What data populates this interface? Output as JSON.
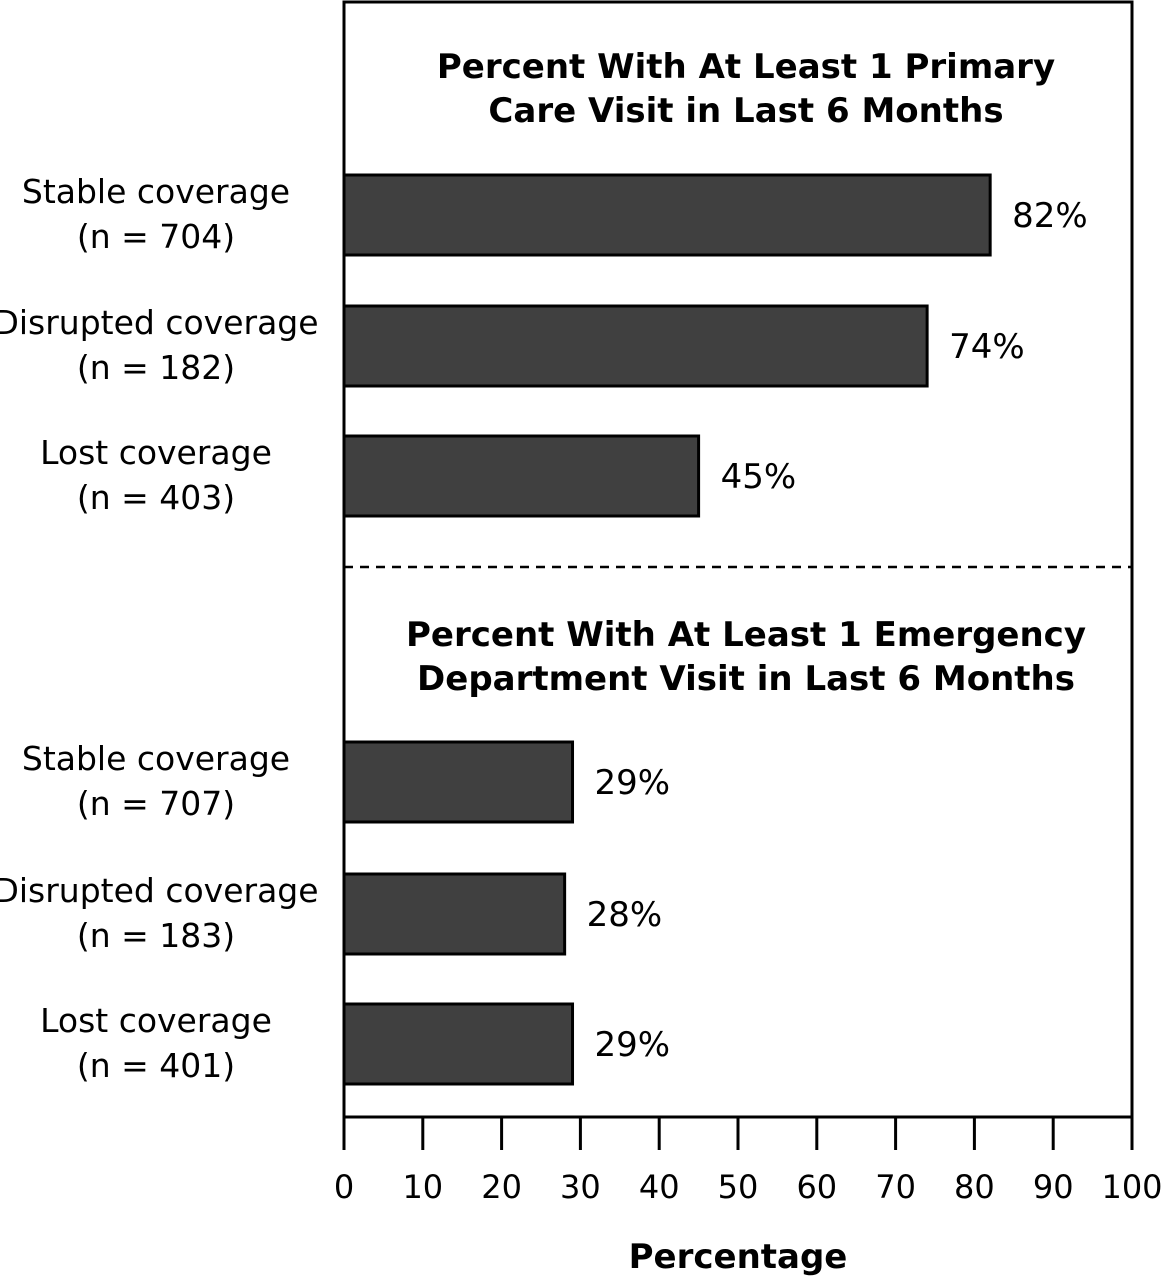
{
  "chart_data": {
    "type": "bar",
    "orientation": "horizontal",
    "xlabel": "Percentage",
    "xlim": [
      0,
      100
    ],
    "xticks": [
      0,
      10,
      20,
      30,
      40,
      50,
      60,
      70,
      80,
      90,
      100
    ],
    "grid": false,
    "colors": {
      "bar": "#404040",
      "outline": "#000000"
    },
    "panels": [
      {
        "title": [
          "Percent With At Least 1 Primary",
          "Care Visit in Last 6 Months"
        ],
        "categories": [
          [
            "Stable coverage",
            "(n = 704)"
          ],
          [
            "Disrupted coverage",
            "(n = 182)"
          ],
          [
            "Lost coverage",
            "(n = 403)"
          ]
        ],
        "values": [
          82,
          74,
          45
        ],
        "value_labels": [
          "82%",
          "74%",
          "45%"
        ]
      },
      {
        "title": [
          "Percent With At Least 1 Emergency",
          "Department Visit in Last 6 Months"
        ],
        "categories": [
          [
            "Stable coverage",
            "(n = 707)"
          ],
          [
            "Disrupted coverage",
            "(n = 183)"
          ],
          [
            "Lost coverage",
            "(n = 401)"
          ]
        ],
        "values": [
          29,
          28,
          29
        ],
        "value_labels": [
          "29%",
          "28%",
          "29%"
        ]
      }
    ]
  }
}
